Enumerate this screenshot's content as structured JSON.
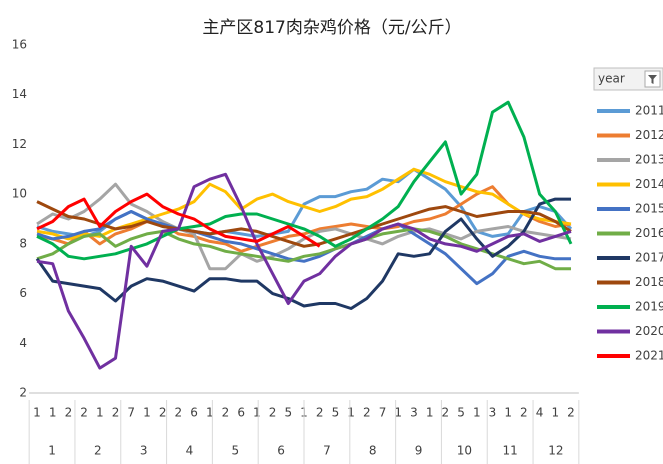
{
  "chart_data": {
    "type": "line",
    "title": "主产区817肉杂鸡价格（元/公斤）",
    "categories": [
      "1",
      "1",
      "2",
      "2",
      "1",
      "2",
      "7",
      "1",
      "2",
      "2",
      "6",
      "1",
      "2",
      "6",
      "1",
      "2",
      "5",
      "1",
      "2",
      "5",
      "1",
      "2",
      "7",
      "1",
      "3",
      "1",
      "2",
      "5",
      "1",
      "3",
      "1",
      "2",
      "4",
      "1",
      "2"
    ],
    "months": [
      "1",
      "2",
      "3",
      "4",
      "5",
      "6",
      "7",
      "8",
      "9",
      "10",
      "11",
      "12"
    ],
    "ylim": [
      2,
      16
    ],
    "yticks": [
      2,
      4,
      6,
      8,
      10,
      12,
      14,
      16
    ],
    "legend_title": "year",
    "series": [
      {
        "name": "2011",
        "color": "#5b9bd5",
        "values": [
          8.7,
          8.5,
          8.4,
          8.3,
          8.5,
          9.0,
          9.3,
          9.0,
          8.7,
          8.6,
          8.5,
          8.4,
          8.5,
          8.4,
          8.3,
          8.4,
          8.5,
          9.6,
          9.9,
          9.9,
          10.1,
          10.2,
          10.6,
          10.5,
          11.0,
          10.6,
          10.2,
          9.5,
          8.5,
          8.3,
          8.4,
          9.3,
          9.5,
          9.3,
          8.6
        ]
      },
      {
        "name": "2012",
        "color": "#ed7d31",
        "values": [
          8.3,
          8.2,
          8.0,
          8.5,
          8.0,
          8.4,
          8.6,
          8.9,
          8.8,
          8.4,
          8.3,
          8.1,
          8.0,
          7.7,
          7.9,
          8.1,
          8.3,
          8.4,
          8.6,
          8.7,
          8.8,
          8.7,
          8.6,
          8.7,
          8.9,
          9.0,
          9.2,
          9.6,
          10.0,
          10.3,
          9.6,
          9.2,
          8.9,
          8.7,
          8.8
        ]
      },
      {
        "name": "2013",
        "color": "#a5a5a5",
        "values": [
          8.8,
          9.2,
          9.0,
          9.3,
          9.8,
          10.4,
          9.6,
          9.3,
          8.9,
          8.6,
          8.4,
          7.0,
          7.0,
          7.6,
          7.3,
          7.5,
          7.8,
          8.2,
          8.5,
          8.6,
          8.4,
          8.2,
          8.0,
          8.3,
          8.5,
          8.6,
          8.4,
          8.2,
          8.5,
          8.6,
          8.7,
          8.5,
          8.4,
          8.3,
          8.2
        ]
      },
      {
        "name": "2014",
        "color": "#ffc000",
        "values": [
          8.5,
          8.4,
          8.2,
          8.4,
          8.3,
          8.6,
          8.8,
          9.0,
          9.2,
          9.4,
          9.7,
          10.4,
          10.1,
          9.4,
          9.8,
          10.0,
          9.7,
          9.5,
          9.3,
          9.5,
          9.8,
          9.9,
          10.2,
          10.6,
          11.0,
          10.8,
          10.5,
          10.3,
          10.1,
          10.0,
          9.6,
          9.2,
          9.0,
          8.9,
          8.8
        ]
      },
      {
        "name": "2015",
        "color": "#4472c4",
        "values": [
          8.4,
          8.2,
          8.3,
          8.5,
          8.6,
          9.0,
          9.3,
          9.0,
          8.8,
          8.6,
          8.5,
          8.3,
          8.1,
          8.0,
          7.8,
          7.6,
          7.4,
          7.3,
          7.5,
          7.8,
          8.0,
          8.3,
          8.6,
          8.8,
          8.4,
          8.0,
          7.6,
          7.0,
          6.4,
          6.8,
          7.5,
          7.7,
          7.5,
          7.4,
          7.4
        ]
      },
      {
        "name": "2016",
        "color": "#70ad47",
        "values": [
          7.4,
          7.6,
          8.0,
          8.3,
          8.4,
          7.9,
          8.2,
          8.4,
          8.5,
          8.2,
          8.0,
          7.9,
          7.7,
          7.6,
          7.5,
          7.4,
          7.3,
          7.5,
          7.6,
          7.8,
          8.0,
          8.2,
          8.4,
          8.5,
          8.6,
          8.5,
          8.3,
          8.0,
          7.8,
          7.6,
          7.4,
          7.2,
          7.3,
          7.0,
          7.0
        ]
      },
      {
        "name": "2017",
        "color": "#1f3864",
        "values": [
          7.4,
          6.5,
          6.4,
          6.3,
          6.2,
          5.7,
          6.3,
          6.6,
          6.5,
          6.3,
          6.1,
          6.6,
          6.6,
          6.5,
          6.5,
          6.0,
          5.8,
          5.5,
          5.6,
          5.6,
          5.4,
          5.8,
          6.5,
          7.6,
          7.5,
          7.6,
          8.5,
          9.0,
          8.2,
          7.5,
          7.9,
          8.5,
          9.6,
          9.8,
          9.8
        ]
      },
      {
        "name": "2018",
        "color": "#9e480e",
        "values": [
          9.7,
          9.4,
          9.1,
          9.0,
          8.8,
          8.6,
          8.7,
          8.9,
          8.7,
          8.6,
          8.5,
          8.4,
          8.5,
          8.6,
          8.5,
          8.3,
          8.1,
          7.9,
          8.0,
          8.2,
          8.4,
          8.6,
          8.8,
          9.0,
          9.2,
          9.4,
          9.5,
          9.3,
          9.1,
          9.2,
          9.3,
          9.3,
          9.2,
          8.9,
          8.5
        ]
      },
      {
        "name": "2019",
        "color": "#00b050",
        "values": [
          8.3,
          8.0,
          7.5,
          7.4,
          7.5,
          7.6,
          7.8,
          8.0,
          8.3,
          8.6,
          8.7,
          8.8,
          9.1,
          9.2,
          9.2,
          9.0,
          8.8,
          8.6,
          8.3,
          7.9,
          8.2,
          8.6,
          9.0,
          9.5,
          10.5,
          11.3,
          12.1,
          10.0,
          10.8,
          13.3,
          13.7,
          12.3,
          10.0,
          9.3,
          8.0
        ]
      },
      {
        "name": "2020",
        "color": "#7030a0",
        "values": [
          7.3,
          7.2,
          5.3,
          4.2,
          3.0,
          3.4,
          7.9,
          7.1,
          8.5,
          8.6,
          10.3,
          10.6,
          10.8,
          9.5,
          8.0,
          6.8,
          5.6,
          6.5,
          6.8,
          7.5,
          8.0,
          8.2,
          8.6,
          8.8,
          8.6,
          8.2,
          8.0,
          7.9,
          7.7,
          8.0,
          8.3,
          8.4,
          8.1,
          8.3,
          8.5
        ]
      },
      {
        "name": "2021",
        "color": "#ff0000",
        "values": [
          8.6,
          8.9,
          9.5,
          9.8,
          8.7,
          9.3,
          9.7,
          10.0,
          9.5,
          9.2,
          9.0,
          8.6,
          8.3,
          8.2,
          8.1,
          8.4,
          8.7,
          8.3,
          7.9,
          null,
          null,
          null,
          null,
          null,
          null,
          null,
          null,
          null,
          null,
          null,
          null,
          null,
          null,
          null,
          null
        ]
      }
    ]
  }
}
